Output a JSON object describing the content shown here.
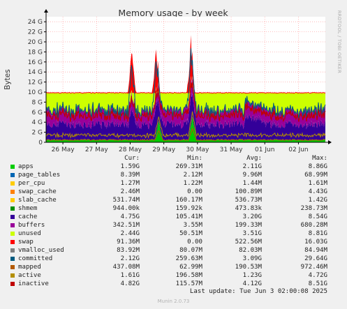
{
  "chart_data": {
    "type": "area",
    "title": "Memory usage - by week",
    "ylabel": "Bytes",
    "side_label": "RRDTOOL / TOBI OETIKER",
    "ylim": [
      0,
      25
    ],
    "yticks": [
      0,
      2,
      4,
      6,
      8,
      10,
      12,
      14,
      16,
      18,
      20,
      22,
      24
    ],
    "ytick_labels": [
      "0",
      "2 G",
      "4 G",
      "6 G",
      "8 G",
      "10 G",
      "12 G",
      "14 G",
      "16 G",
      "18 G",
      "20 G",
      "22 G",
      "24 G"
    ],
    "xlim": [
      0,
      8.3
    ],
    "xticks": [
      0.5,
      1.5,
      2.5,
      3.5,
      4.5,
      5.5,
      6.5,
      7.5
    ],
    "xtick_labels": [
      "26 May",
      "27 May",
      "28 May",
      "29 May",
      "30 May",
      "31 May",
      "01 Jun",
      "02 Jun"
    ],
    "x_unit": "days",
    "grid": true,
    "legend_headers": [
      "Cur:",
      "Min:",
      "Avg:",
      "Max:"
    ],
    "series": [
      {
        "name": "apps",
        "color": "#00cc00",
        "cur": "1.59G",
        "min": "269.31M",
        "avg": "2.11G",
        "max": "8.86G"
      },
      {
        "name": "page_tables",
        "color": "#0066b3",
        "cur": "8.39M",
        "min": "2.12M",
        "avg": "9.96M",
        "max": "68.99M"
      },
      {
        "name": "per_cpu",
        "color": "#ffcc00",
        "cur": "1.27M",
        "min": "1.22M",
        "avg": "1.44M",
        "max": "1.61M"
      },
      {
        "name": "swap_cache",
        "color": "#ff8000",
        "cur": "2.46M",
        "min": "0.00",
        "avg": "100.89M",
        "max": "4.43G"
      },
      {
        "name": "slab_cache",
        "color": "#ffcc00",
        "cur": "531.74M",
        "min": "160.17M",
        "avg": "536.73M",
        "max": "1.42G"
      },
      {
        "name": "shmem",
        "color": "#008f00",
        "cur": "944.00k",
        "min": "159.92k",
        "avg": "473.83k",
        "max": "238.73M"
      },
      {
        "name": "cache",
        "color": "#330099",
        "cur": "4.75G",
        "min": "105.41M",
        "avg": "3.20G",
        "max": "8.54G"
      },
      {
        "name": "buffers",
        "color": "#990099",
        "cur": "342.51M",
        "min": "3.55M",
        "avg": "199.33M",
        "max": "680.28M"
      },
      {
        "name": "unused",
        "color": "#ccff00",
        "cur": "2.44G",
        "min": "50.51M",
        "avg": "3.51G",
        "max": "8.81G"
      },
      {
        "name": "swap",
        "color": "#ff0000",
        "cur": "91.36M",
        "min": "0.00",
        "avg": "522.56M",
        "max": "16.03G"
      },
      {
        "name": "vmalloc_used",
        "color": "#808080",
        "cur": "83.92M",
        "min": "80.07M",
        "avg": "82.03M",
        "max": "84.94M"
      },
      {
        "name": "committed",
        "color": "#005b80",
        "cur": "2.12G",
        "min": "259.63M",
        "avg": "3.09G",
        "max": "29.64G"
      },
      {
        "name": "mapped",
        "color": "#b35a00",
        "cur": "437.08M",
        "min": "62.99M",
        "avg": "190.53M",
        "max": "972.46M"
      },
      {
        "name": "active",
        "color": "#b38f00",
        "cur": "1.61G",
        "min": "196.58M",
        "avg": "1.23G",
        "max": "4.72G"
      },
      {
        "name": "inactive",
        "color": "#bf0000",
        "cur": "4.82G",
        "min": "115.57M",
        "avg": "4.12G",
        "max": "8.51G"
      }
    ]
  },
  "footer": {
    "last_update": "Last update: Tue Jun  3 02:00:08 2025",
    "munin": "Munin 2.0.73"
  }
}
